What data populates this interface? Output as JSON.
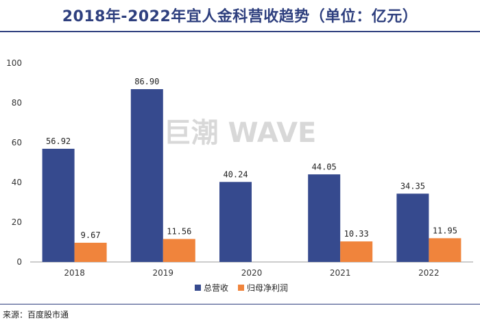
{
  "title": "2018年-2022年宜人金科营收趋势（单位：亿元）",
  "source": "来源：百度股市通",
  "watermark": "巨潮 WAVE",
  "colors": {
    "accent": "#2e3f7e",
    "revenue": "#364a8e",
    "profit": "#f0843c"
  },
  "chart_data": {
    "type": "bar",
    "title": "2018年-2022年宜人金科营收趋势（单位：亿元）",
    "categories": [
      "2018",
      "2019",
      "2020",
      "2021",
      "2022"
    ],
    "series": [
      {
        "name": "总营收",
        "values": [
          56.92,
          86.9,
          40.24,
          44.05,
          34.35
        ],
        "labels": [
          "56.92",
          "86.90",
          "40.24",
          "44.05",
          "34.35"
        ]
      },
      {
        "name": "归母净利润",
        "values": [
          9.67,
          11.56,
          null,
          10.33,
          11.95
        ],
        "labels": [
          "9.67",
          "11.56",
          "",
          "10.33",
          "11.95"
        ]
      }
    ],
    "yticks": [
      "0",
      "20",
      "40",
      "60",
      "80",
      "100"
    ],
    "ylim": [
      0,
      100
    ],
    "legend": "bottom-center"
  }
}
